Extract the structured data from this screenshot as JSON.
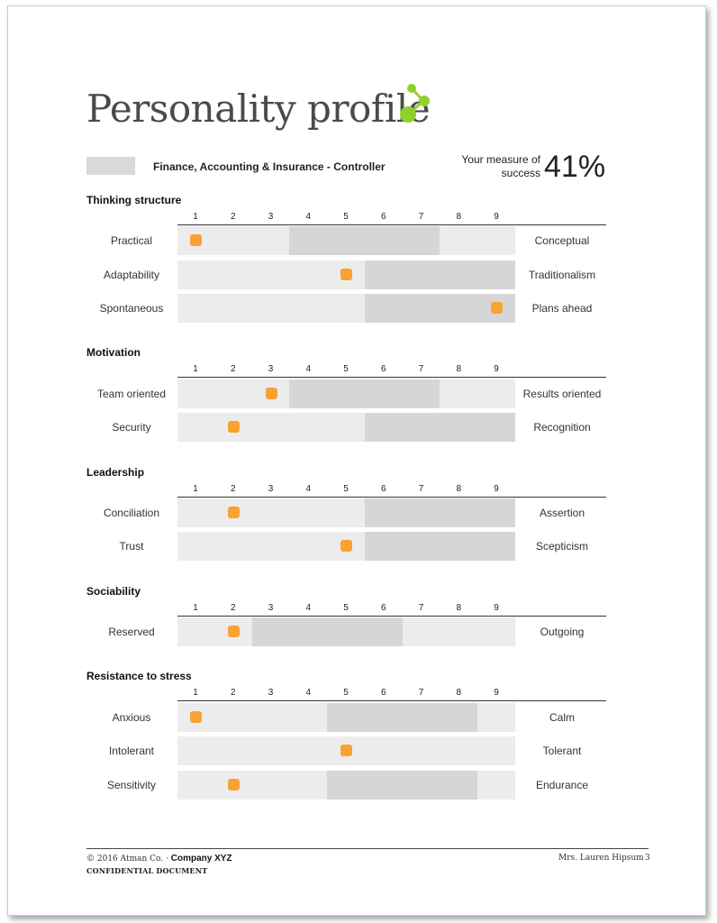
{
  "title": "Personality profile",
  "logo_icon": "green-molecule-icon",
  "legend": {
    "label": "Finance, Accounting & Insurance - Controller"
  },
  "measure": {
    "label": "Your measure of success",
    "value": "41%"
  },
  "colors": {
    "marker": "#f7a233",
    "range": "#d6d6d7",
    "row": "#ececec",
    "logo_green": "#8fd12c"
  },
  "scale": [
    "1",
    "2",
    "3",
    "4",
    "5",
    "6",
    "7",
    "8",
    "9"
  ],
  "sections": [
    {
      "title": "Thinking structure",
      "rows": [
        {
          "left": "Practical",
          "right": "Conceptual",
          "score": 1,
          "range": [
            4,
            7
          ]
        },
        {
          "left": "Adaptability",
          "right": "Traditionalism",
          "score": 5,
          "range": [
            6,
            9
          ]
        },
        {
          "left": "Spontaneous",
          "right": "Plans ahead",
          "score": 9,
          "range": [
            6,
            9
          ]
        }
      ]
    },
    {
      "title": "Motivation",
      "rows": [
        {
          "left": "Team oriented",
          "right": "Results oriented",
          "score": 3,
          "range": [
            4,
            7
          ]
        },
        {
          "left": "Security",
          "right": "Recognition",
          "score": 2,
          "range": [
            6,
            9
          ]
        }
      ]
    },
    {
      "title": "Leadership",
      "rows": [
        {
          "left": "Conciliation",
          "right": "Assertion",
          "score": 2,
          "range": [
            6,
            9
          ]
        },
        {
          "left": "Trust",
          "right": "Scepticism",
          "score": 5,
          "range": [
            6,
            9
          ]
        }
      ]
    },
    {
      "title": "Sociability",
      "rows": [
        {
          "left": "Reserved",
          "right": "Outgoing",
          "score": 2,
          "range": [
            3,
            6
          ]
        }
      ]
    },
    {
      "title": "Resistance to stress",
      "rows": [
        {
          "left": "Anxious",
          "right": "Calm",
          "score": 1,
          "range": [
            5,
            8
          ]
        },
        {
          "left": "Intolerant",
          "right": "Tolerant",
          "score": 5,
          "range": null
        },
        {
          "left": "Sensitivity",
          "right": "Endurance",
          "score": 2,
          "range": [
            5,
            8
          ]
        }
      ]
    }
  ],
  "footer": {
    "copyright": "© 2016 Atman Co. ·",
    "company": "Company XYZ",
    "confidential": "CONFIDENTIAL DOCUMENT",
    "person": "Mrs. Lauren Hipsum",
    "page": "3"
  }
}
